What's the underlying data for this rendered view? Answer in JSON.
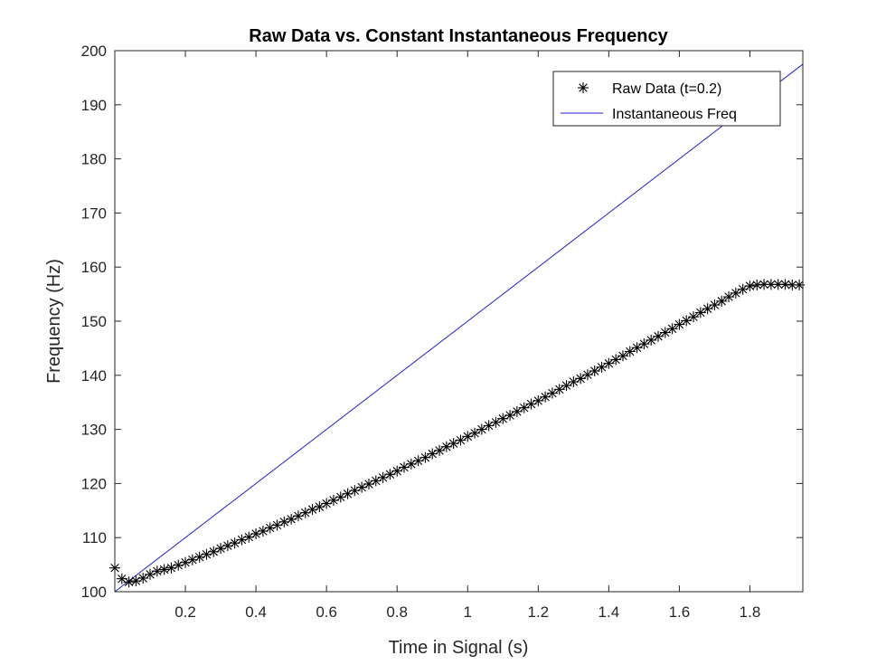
{
  "chart_data": {
    "type": "line",
    "title": "Raw Data vs. Constant Instantaneous Frequency",
    "xlabel": "Time in Signal (s)",
    "ylabel": "Frequency (Hz)",
    "xlim": [
      0,
      1.95
    ],
    "ylim": [
      100,
      200
    ],
    "xticks": [
      0.2,
      0.4,
      0.6,
      0.8,
      1,
      1.2,
      1.4,
      1.6,
      1.8
    ],
    "xtick_labels": [
      "0.2",
      "0.4",
      "0.6",
      "0.8",
      "1",
      "1.2",
      "1.4",
      "1.6",
      "1.8"
    ],
    "yticks": [
      100,
      110,
      120,
      130,
      140,
      150,
      160,
      170,
      180,
      190,
      200
    ],
    "ytick_labels": [
      "100",
      "110",
      "120",
      "130",
      "140",
      "150",
      "160",
      "170",
      "180",
      "190",
      "200"
    ],
    "grid": false,
    "legend_position": "top-right",
    "series": [
      {
        "name": "Raw Data (t=0.2)",
        "style": "markers",
        "marker": "asterisk",
        "color": "#000000",
        "x": [
          0.0,
          0.02,
          0.04,
          0.06,
          0.08,
          0.1,
          0.12,
          0.14,
          0.16,
          0.18,
          0.2,
          0.22,
          0.24,
          0.26,
          0.28,
          0.3,
          0.32,
          0.34,
          0.36,
          0.38,
          0.4,
          0.42,
          0.44,
          0.46,
          0.48,
          0.5,
          0.52,
          0.54,
          0.56,
          0.58,
          0.6,
          0.62,
          0.64,
          0.66,
          0.68,
          0.7,
          0.72,
          0.74,
          0.76,
          0.78,
          0.8,
          0.82,
          0.84,
          0.86,
          0.88,
          0.9,
          0.92,
          0.94,
          0.96,
          0.98,
          1.0,
          1.02,
          1.04,
          1.06,
          1.08,
          1.1,
          1.12,
          1.14,
          1.16,
          1.18,
          1.2,
          1.22,
          1.24,
          1.26,
          1.28,
          1.3,
          1.32,
          1.34,
          1.36,
          1.38,
          1.4,
          1.42,
          1.44,
          1.46,
          1.48,
          1.5,
          1.52,
          1.54,
          1.56,
          1.58,
          1.6,
          1.62,
          1.64,
          1.66,
          1.68,
          1.7,
          1.72,
          1.74,
          1.76,
          1.78,
          1.8,
          1.82,
          1.84,
          1.86,
          1.88,
          1.9,
          1.92,
          1.94
        ],
        "y": [
          104.4,
          102.4,
          101.8,
          102.0,
          102.5,
          103.2,
          103.8,
          104.1,
          104.4,
          104.9,
          105.4,
          105.9,
          106.4,
          106.9,
          107.4,
          108.0,
          108.5,
          109.0,
          109.6,
          110.1,
          110.7,
          111.2,
          111.8,
          112.3,
          112.9,
          113.4,
          114.0,
          114.6,
          115.2,
          115.7,
          116.3,
          116.9,
          117.5,
          118.1,
          118.7,
          119.3,
          119.9,
          120.5,
          121.1,
          121.7,
          122.3,
          123.0,
          123.6,
          124.2,
          124.8,
          125.5,
          126.1,
          126.8,
          127.4,
          128.0,
          128.7,
          129.3,
          130.0,
          130.7,
          131.3,
          132.0,
          132.6,
          133.3,
          134.0,
          134.7,
          135.3,
          136.0,
          136.7,
          137.4,
          138.1,
          138.8,
          139.4,
          140.1,
          140.8,
          141.5,
          142.2,
          142.9,
          143.6,
          144.4,
          145.1,
          145.8,
          146.5,
          147.2,
          147.9,
          148.6,
          149.4,
          150.1,
          150.8,
          151.6,
          152.3,
          153.0,
          153.7,
          154.5,
          155.2,
          155.9,
          156.5,
          156.7,
          156.8,
          156.8,
          156.8,
          156.8,
          156.7,
          156.7
        ]
      },
      {
        "name": "Instantaneous Freq",
        "style": "line",
        "color": "#1f1fd6",
        "x": [
          0,
          1.95
        ],
        "y": [
          100,
          197.5
        ]
      }
    ]
  }
}
